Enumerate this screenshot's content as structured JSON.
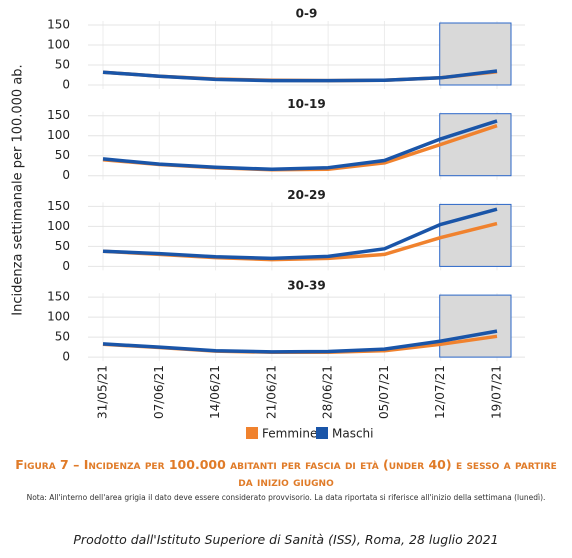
{
  "chart_data": [
    {
      "type": "line",
      "title": "0-9",
      "categories": [
        "31/05/21",
        "07/06/21",
        "14/06/21",
        "21/06/21",
        "28/06/21",
        "05/07/21",
        "12/07/21",
        "19/07/21"
      ],
      "series": [
        {
          "name": "Femmine",
          "color": "#f0822e",
          "values": [
            32,
            22,
            15,
            12,
            11,
            12,
            18,
            33
          ]
        },
        {
          "name": "Maschi",
          "color": "#1a55a8",
          "values": [
            32,
            22,
            14,
            11,
            11,
            12,
            18,
            35
          ]
        }
      ],
      "ylim": [
        0,
        150
      ],
      "yticks": [
        0,
        50,
        100,
        150
      ],
      "grid": true
    },
    {
      "type": "line",
      "title": "10-19",
      "categories": [
        "31/05/21",
        "07/06/21",
        "14/06/21",
        "21/06/21",
        "28/06/21",
        "05/07/21",
        "12/07/21",
        "19/07/21"
      ],
      "series": [
        {
          "name": "Femmine",
          "color": "#f0822e",
          "values": [
            40,
            28,
            20,
            15,
            16,
            32,
            78,
            125
          ]
        },
        {
          "name": "Maschi",
          "color": "#1a55a8",
          "values": [
            42,
            29,
            21,
            16,
            20,
            38,
            92,
            137
          ]
        }
      ],
      "ylim": [
        0,
        150
      ],
      "yticks": [
        0,
        50,
        100,
        150
      ],
      "grid": true
    },
    {
      "type": "line",
      "title": "20-29",
      "categories": [
        "31/05/21",
        "07/06/21",
        "14/06/21",
        "21/06/21",
        "28/06/21",
        "05/07/21",
        "12/07/21",
        "19/07/21"
      ],
      "series": [
        {
          "name": "Femmine",
          "color": "#f0822e",
          "values": [
            38,
            30,
            22,
            17,
            20,
            30,
            72,
            107
          ]
        },
        {
          "name": "Maschi",
          "color": "#1a55a8",
          "values": [
            38,
            32,
            24,
            20,
            25,
            44,
            105,
            143
          ]
        }
      ],
      "ylim": [
        0,
        150
      ],
      "yticks": [
        0,
        50,
        100,
        150
      ],
      "grid": true
    },
    {
      "type": "line",
      "title": "30-39",
      "categories": [
        "31/05/21",
        "07/06/21",
        "14/06/21",
        "21/06/21",
        "28/06/21",
        "05/07/21",
        "12/07/21",
        "19/07/21"
      ],
      "series": [
        {
          "name": "Femmine",
          "color": "#f0822e",
          "values": [
            32,
            24,
            15,
            12,
            12,
            16,
            32,
            52
          ]
        },
        {
          "name": "Maschi",
          "color": "#1a55a8",
          "values": [
            33,
            25,
            16,
            13,
            14,
            20,
            40,
            65
          ]
        }
      ],
      "ylim": [
        0,
        150
      ],
      "yticks": [
        0,
        50,
        100,
        150
      ],
      "grid": true
    }
  ],
  "ylabel": "Incidenza settimanale per 100.000 ab.",
  "caption": "Figura 7 – Incidenza per 100.000 abitanti per fascia di età (under 40) e sesso a partire da inizio giugno",
  "note": "Nota: All'interno dell'area grigia il dato deve essere considerato provvisorio. La data riportata si riferisce all'inizio della settimana (lunedì).",
  "credit": "Prodotto dall'Istituto Superiore di Sanità (ISS), Roma, 28 luglio 2021"
}
